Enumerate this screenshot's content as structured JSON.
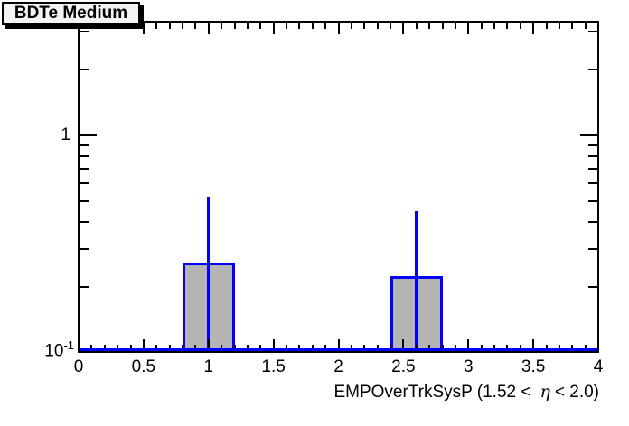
{
  "title_box": {
    "label": "BDTe Medium"
  },
  "y_axis": {
    "top_label": "1",
    "bottom_label_base": "10",
    "bottom_label_exponent": "-1"
  },
  "x_axis": {
    "title_prefix": "EMPOverTrkSysP (1.52 <",
    "title_eta": "η",
    "title_suffix": "< 2.0)"
  },
  "chart_data": {
    "type": "bar",
    "title": "BDTe Medium",
    "xlabel": "EMPOverTrkSysP (1.52 <  η < 2.0)",
    "ylabel": "",
    "x_range": [
      0,
      4
    ],
    "y_scale": "log",
    "y_range": [
      0.1,
      3.3
    ],
    "grid": false,
    "legend": false,
    "x_major_tick_step": 0.5,
    "x_minor_tick_step": 0.1,
    "x_tick_values": [
      0,
      0.5,
      1,
      1.5,
      2,
      2.5,
      3,
      3.5,
      4
    ],
    "x_tick_labels": [
      "0",
      "0.5",
      "1",
      "1.5",
      "2",
      "2.5",
      "3",
      "3.5",
      "4"
    ],
    "y_tick_labels": [
      "10^-1",
      "1"
    ],
    "y_major_ticks": [
      1
    ],
    "y_minor_ticks": [
      0.2,
      0.3,
      0.4,
      0.5,
      0.6,
      0.7,
      0.8,
      0.9,
      2,
      3
    ],
    "bins": [
      {
        "x_low": 0.8,
        "x_high": 1.2,
        "x_center": 1.0,
        "value": 0.26,
        "err_up_to": 0.52
      },
      {
        "x_low": 2.4,
        "x_high": 2.8,
        "x_center": 2.6,
        "value": 0.225,
        "err_up_to": 0.45
      }
    ],
    "colors": {
      "bar_fill": "#b5b5b5",
      "bar_line": "#0000ff",
      "axis": "#000000",
      "title_box_fill": "#f4f4f4",
      "background": "#ffffff"
    }
  }
}
